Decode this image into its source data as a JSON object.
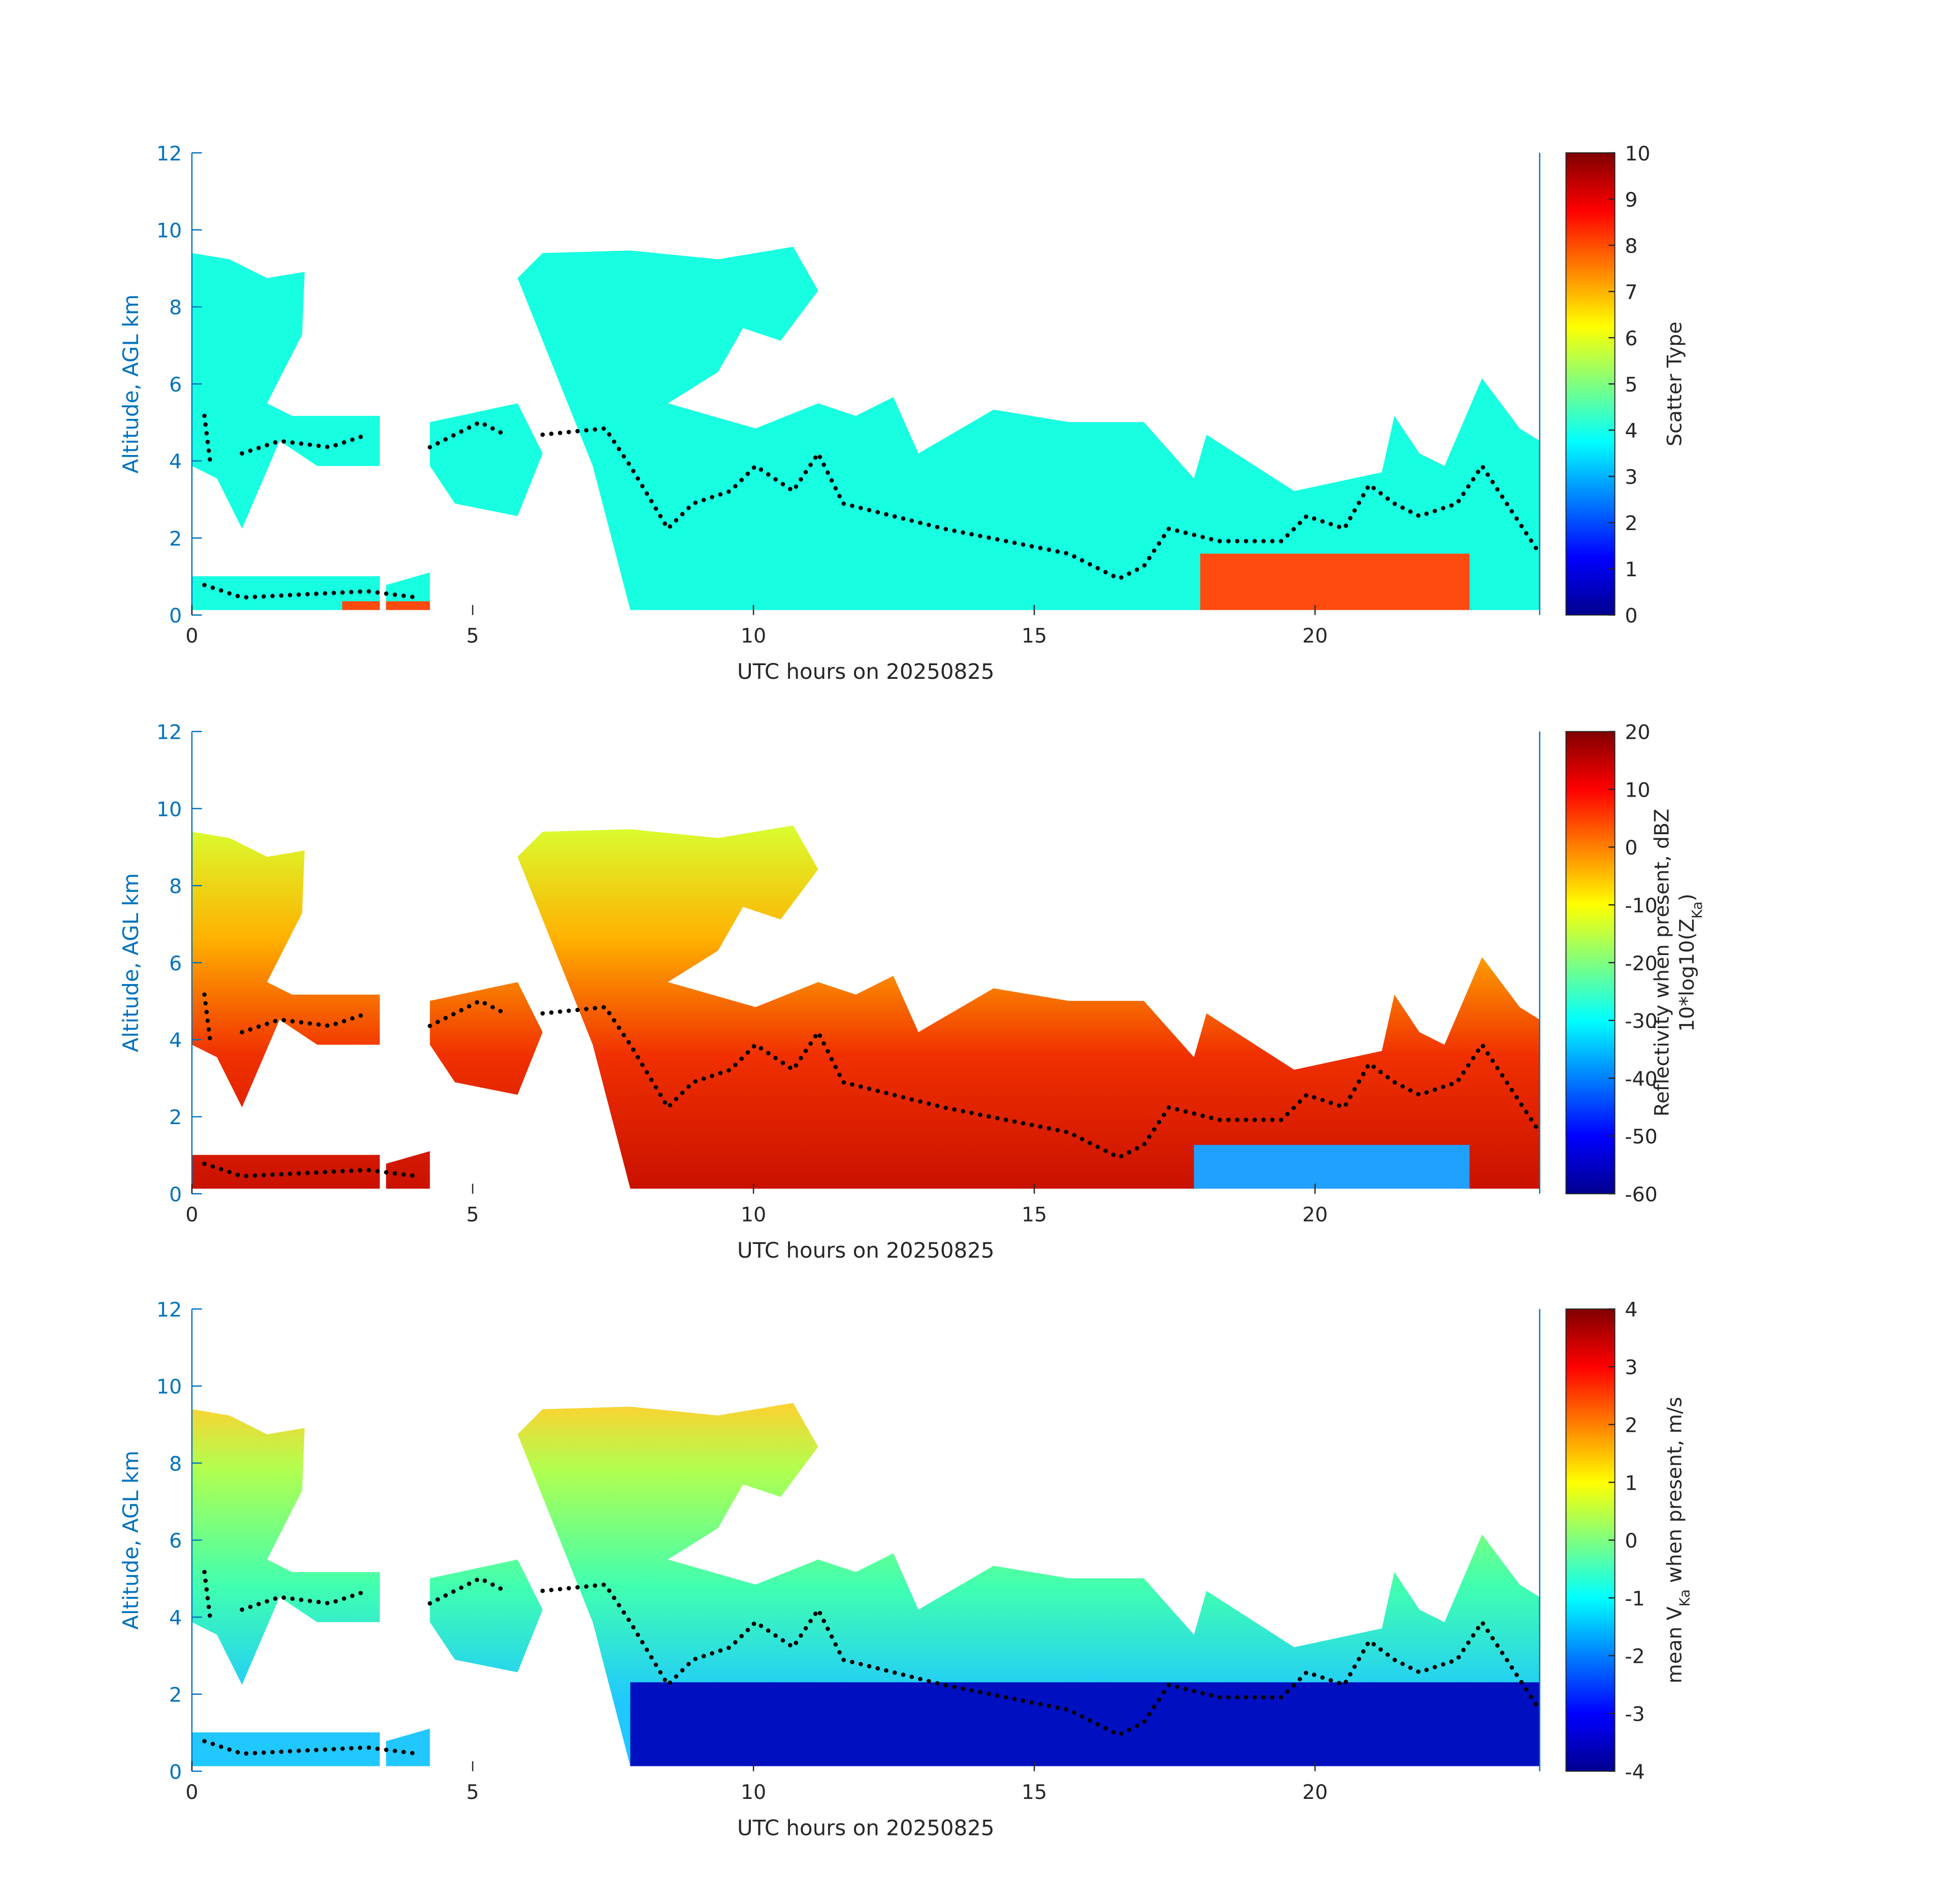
{
  "chart_data": [
    {
      "type": "heatmap",
      "colormap": "jet",
      "xlabel": "UTC hours on 20250825",
      "ylabel": "Altitude, AGL km",
      "xlim": [
        0,
        24
      ],
      "xticks": [
        0,
        5,
        10,
        15,
        20
      ],
      "ylim": [
        0,
        12
      ],
      "yticks": [
        0,
        2,
        4,
        6,
        8,
        10,
        12
      ],
      "colorbar": {
        "clim": [
          0,
          10
        ],
        "ticks": [
          0,
          1,
          2,
          3,
          4,
          5,
          6,
          7,
          8,
          9,
          10
        ],
        "label": [
          [
            {
              "text": "Scatter Type"
            }
          ]
        ]
      }
    },
    {
      "type": "heatmap",
      "colormap": "jet",
      "xlabel": "UTC hours on 20250825",
      "ylabel": "Altitude, AGL km",
      "xlim": [
        0,
        24
      ],
      "xticks": [
        0,
        5,
        10,
        15,
        20
      ],
      "ylim": [
        0,
        12
      ],
      "yticks": [
        0,
        2,
        4,
        6,
        8,
        10,
        12
      ],
      "colorbar": {
        "clim": [
          -60,
          20
        ],
        "ticks": [
          -60,
          -50,
          -40,
          -30,
          -20,
          -10,
          0,
          10,
          20
        ],
        "label": [
          [
            {
              "text": "Reflectivity when present, dBZ"
            }
          ],
          [
            {
              "text": "10*log10(Z"
            },
            {
              "sub": "Ka"
            },
            {
              "text": ")"
            }
          ]
        ]
      }
    },
    {
      "type": "heatmap",
      "colormap": "jet",
      "xlabel": "UTC hours on 20250825",
      "ylabel": "Altitude, AGL km",
      "xlim": [
        0,
        24
      ],
      "xticks": [
        0,
        5,
        10,
        15,
        20
      ],
      "ylim": [
        0,
        12
      ],
      "yticks": [
        0,
        2,
        4,
        6,
        8,
        10,
        12
      ],
      "colorbar": {
        "clim": [
          -4,
          4
        ],
        "ticks": [
          -4,
          -3,
          -2,
          -1,
          0,
          1,
          2,
          3,
          4
        ],
        "label": [
          [
            {
              "text": "mean V"
            },
            {
              "sub": "Ka"
            },
            {
              "text": " when present, m/s"
            }
          ]
        ]
      }
    }
  ]
}
